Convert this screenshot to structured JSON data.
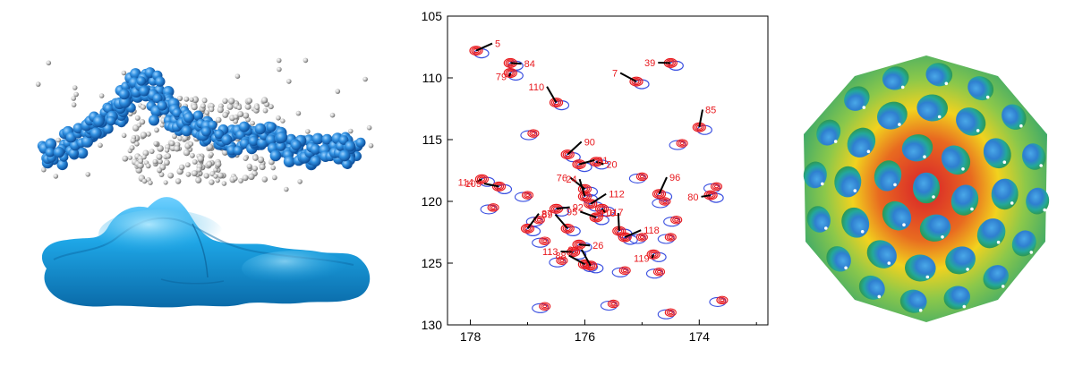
{
  "spectrum": {
    "chart_data": {
      "type": "scatter",
      "title": "",
      "xlabel": "",
      "ylabel": "",
      "xlim": [
        178.4,
        172.8
      ],
      "ylim": [
        105,
        130
      ],
      "x_ticks": [
        178,
        176,
        174
      ],
      "y_ticks": [
        105,
        110,
        115,
        120,
        125,
        130
      ],
      "series": [
        {
          "peaks": [
            {
              "label": "5",
              "x": 177.9,
              "y": 107.8
            },
            {
              "label": "84",
              "x": 177.3,
              "y": 108.8
            },
            {
              "label": "79",
              "x": 177.3,
              "y": 109.6
            },
            {
              "label": "39",
              "x": 174.5,
              "y": 108.8
            },
            {
              "label": "7",
              "x": 175.1,
              "y": 110.3
            },
            {
              "label": "110",
              "x": 176.5,
              "y": 112.0
            },
            {
              "label": "85",
              "x": 174.0,
              "y": 114.0
            },
            {
              "label": "90",
              "x": 176.3,
              "y": 116.2
            },
            {
              "label": "81",
              "x": 176.1,
              "y": 117.0
            },
            {
              "label": "20",
              "x": 175.8,
              "y": 116.8
            },
            {
              "label": "114",
              "x": 177.8,
              "y": 118.2
            },
            {
              "label": "109",
              "x": 177.5,
              "y": 118.8
            },
            {
              "label": "76",
              "x": 176.0,
              "y": 119.0
            },
            {
              "label": "24",
              "x": 176.0,
              "y": 119.6
            },
            {
              "label": "96",
              "x": 174.7,
              "y": 119.4
            },
            {
              "label": "112",
              "x": 175.9,
              "y": 120.2
            },
            {
              "label": "92",
              "x": 176.5,
              "y": 120.6
            },
            {
              "label": "117",
              "x": 175.7,
              "y": 120.6
            },
            {
              "label": "80",
              "x": 173.8,
              "y": 119.5
            },
            {
              "label": "95",
              "x": 175.8,
              "y": 121.3
            },
            {
              "label": "89",
              "x": 176.3,
              "y": 122.2
            },
            {
              "label": "116",
              "x": 175.4,
              "y": 122.4
            },
            {
              "label": "87",
              "x": 177.0,
              "y": 122.2
            },
            {
              "label": "118",
              "x": 175.3,
              "y": 122.9
            },
            {
              "label": "26",
              "x": 176.1,
              "y": 123.5
            },
            {
              "label": "119",
              "x": 174.8,
              "y": 124.3
            },
            {
              "label": "113",
              "x": 176.2,
              "y": 124.1
            },
            {
              "label": "88",
              "x": 176.0,
              "y": 125.1
            },
            {
              "label": "93",
              "x": 175.9,
              "y": 125.2
            }
          ]
        }
      ],
      "colors": {
        "labels": "#e8191e",
        "reference_contours": "#3a4fe0",
        "leader_lines": "#000000"
      },
      "grid": false
    }
  },
  "colors": {
    "bead_blue": "#2f8fe0",
    "bead_grey": "#c8c8c8",
    "surface_blue": "#1ea6e6",
    "capsid_red": "#d8202a",
    "capsid_yellow": "#f2d21e",
    "capsid_green": "#4fb86a",
    "capsid_blue": "#2f7fd0"
  }
}
